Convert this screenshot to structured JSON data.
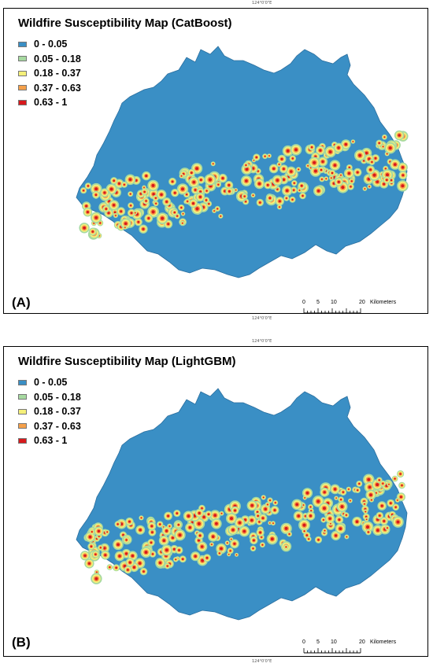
{
  "graticule_top_label": "124°0'0\"E",
  "graticule_mid_label_1": "124°0'0\"E",
  "graticule_mid_label_2": "124°0'0\"E",
  "graticule_bottom_label": "124°0'0\"E",
  "legend": [
    {
      "label": "0 - 0.05",
      "color": "#3a8fc5"
    },
    {
      "label": "0.05 - 0.18",
      "color": "#a6d9a0"
    },
    {
      "label": "0.18 - 0.37",
      "color": "#f5f07a"
    },
    {
      "label": "0.37 - 0.63",
      "color": "#f5a04a"
    },
    {
      "label": "0.63 - 1",
      "color": "#d7191c"
    }
  ],
  "panels": [
    {
      "title": "Wildfire Susceptibility Map (CatBoost)",
      "letter": "(A)"
    },
    {
      "title": "Wildfire Susceptibility Map (LightGBM)",
      "letter": "(B)"
    }
  ],
  "scale": {
    "ticks": [
      "0",
      "5",
      "10",
      "20"
    ],
    "unit": "Kilometers"
  },
  "colors": {
    "region": "#3a8fc5",
    "region_edge": "#2a6e9e"
  }
}
